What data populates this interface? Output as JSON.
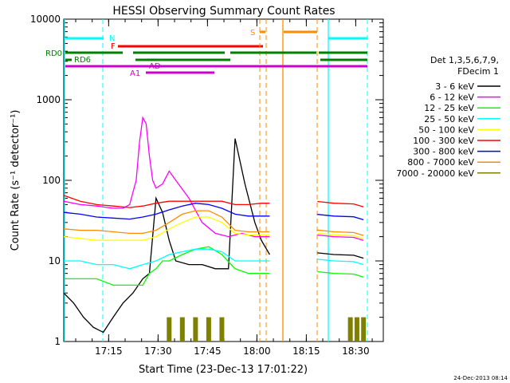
{
  "chart_data": {
    "type": "line",
    "title": "HESSI Observing Summary Count Rates",
    "xlabel": "Start Time (23-Dec-13 17:01:22)",
    "ylabel": "Count Rate (s⁻¹ detector⁻¹)",
    "yscale": "log",
    "ylim": [
      1,
      10000
    ],
    "xlim_minutes": [
      0,
      97
    ],
    "x_tick_labels": [
      "17:15",
      "17:30",
      "17:45",
      "18:00",
      "18:15",
      "18:30"
    ],
    "x_tick_minutes": [
      13.63,
      28.63,
      43.63,
      58.63,
      73.63,
      88.63
    ],
    "y_tick_labels": [
      "1",
      "10",
      "100",
      "1000",
      "10000"
    ],
    "y_ticks": [
      1,
      10,
      100,
      1000,
      10000
    ],
    "grid": false,
    "legend_position": "right",
    "legend_header": [
      "Det 1,3,5,6,7,9,",
      "FDecim 1"
    ],
    "series": [
      {
        "name": "3 - 6 keV",
        "color": "#000000",
        "x": [
          0,
          3,
          6,
          9,
          12,
          15,
          18,
          21,
          24,
          26,
          28,
          30,
          32,
          34,
          38,
          42,
          46,
          50,
          52,
          55,
          58,
          60,
          62.5
        ],
        "y": [
          4,
          3,
          2,
          1.5,
          1.3,
          2,
          3,
          4,
          6,
          7,
          60,
          40,
          18,
          10,
          9,
          9,
          8,
          8,
          330,
          90,
          30,
          18,
          12
        ]
      },
      {
        "name": "6 - 12 keV",
        "color": "#ff00ff",
        "x": [
          0,
          5,
          10,
          15,
          18,
          20,
          22,
          23,
          24,
          25,
          26,
          27,
          28,
          30,
          32,
          34,
          38,
          42,
          46,
          50,
          54,
          58,
          62.5
        ],
        "y": [
          55,
          50,
          48,
          45,
          45,
          50,
          100,
          300,
          600,
          500,
          200,
          100,
          80,
          90,
          130,
          100,
          60,
          30,
          22,
          20,
          22,
          20,
          20
        ]
      },
      {
        "name": "12 - 25 keV",
        "color": "#00ff00",
        "x": [
          0,
          5,
          10,
          15,
          18,
          20,
          22,
          24,
          26,
          28,
          30,
          32,
          36,
          40,
          44,
          48,
          52,
          56,
          60,
          62.5
        ],
        "y": [
          6,
          6,
          6,
          5,
          5,
          5,
          5,
          5,
          7,
          8,
          10,
          10,
          12,
          14,
          15,
          12,
          8,
          7,
          7,
          7
        ]
      },
      {
        "name": "25 - 50 keV",
        "color": "#00ffff",
        "x": [
          0,
          5,
          10,
          15,
          20,
          24,
          28,
          32,
          36,
          40,
          44,
          48,
          52,
          56,
          60,
          62.5
        ],
        "y": [
          10,
          10,
          9,
          9,
          8,
          9,
          10,
          12,
          13,
          14,
          14,
          13,
          10,
          10,
          10,
          10
        ]
      },
      {
        "name": "50 - 100 keV",
        "color": "#ffff00",
        "x": [
          0,
          5,
          10,
          15,
          20,
          24,
          28,
          32,
          36,
          40,
          44,
          48,
          52,
          56,
          60,
          62.5
        ],
        "y": [
          20,
          19,
          18,
          18,
          18,
          18,
          20,
          25,
          30,
          35,
          35,
          30,
          22,
          21,
          21,
          21
        ]
      },
      {
        "name": "100 - 300 keV",
        "color": "#ff0000",
        "x": [
          0,
          5,
          10,
          15,
          20,
          24,
          28,
          32,
          36,
          40,
          44,
          48,
          52,
          56,
          60,
          62.5
        ],
        "y": [
          65,
          55,
          50,
          48,
          46,
          48,
          52,
          55,
          55,
          55,
          55,
          55,
          50,
          50,
          52,
          52
        ]
      },
      {
        "name": "300 - 800 keV",
        "color": "#0000ff",
        "x": [
          0,
          5,
          10,
          15,
          20,
          24,
          28,
          32,
          36,
          40,
          44,
          48,
          52,
          56,
          60,
          62.5
        ],
        "y": [
          40,
          38,
          35,
          34,
          33,
          35,
          38,
          43,
          48,
          52,
          50,
          45,
          38,
          36,
          36,
          36
        ]
      },
      {
        "name": "800 - 7000 keV",
        "color": "#ff8c00",
        "x": [
          0,
          5,
          10,
          15,
          20,
          24,
          28,
          32,
          36,
          40,
          44,
          48,
          52,
          56,
          60,
          62.5
        ],
        "y": [
          25,
          24,
          24,
          23,
          22,
          22,
          24,
          30,
          38,
          42,
          42,
          35,
          24,
          23,
          23,
          23
        ]
      },
      {
        "name": "7000 - 20000 keV",
        "color": "#808000",
        "x": [
          32,
          36,
          40,
          44,
          48
        ],
        "y": [
          2,
          2,
          2,
          2,
          2
        ]
      }
    ],
    "attenuator_bars": [
      {
        "label": "N",
        "color": "#00ffff"
      },
      {
        "label": "F",
        "color": "#ff0000"
      },
      {
        "label": "S",
        "color": "#ff8c00"
      },
      {
        "label": "RD0",
        "color": "#008000"
      },
      {
        "label": "RD6",
        "color": "#008000"
      },
      {
        "label": "AD",
        "color": "#cc00cc"
      },
      {
        "label": "A1",
        "color": "#cc00cc"
      }
    ],
    "footer_timestamp": "24-Dec-2013 08:14"
  }
}
